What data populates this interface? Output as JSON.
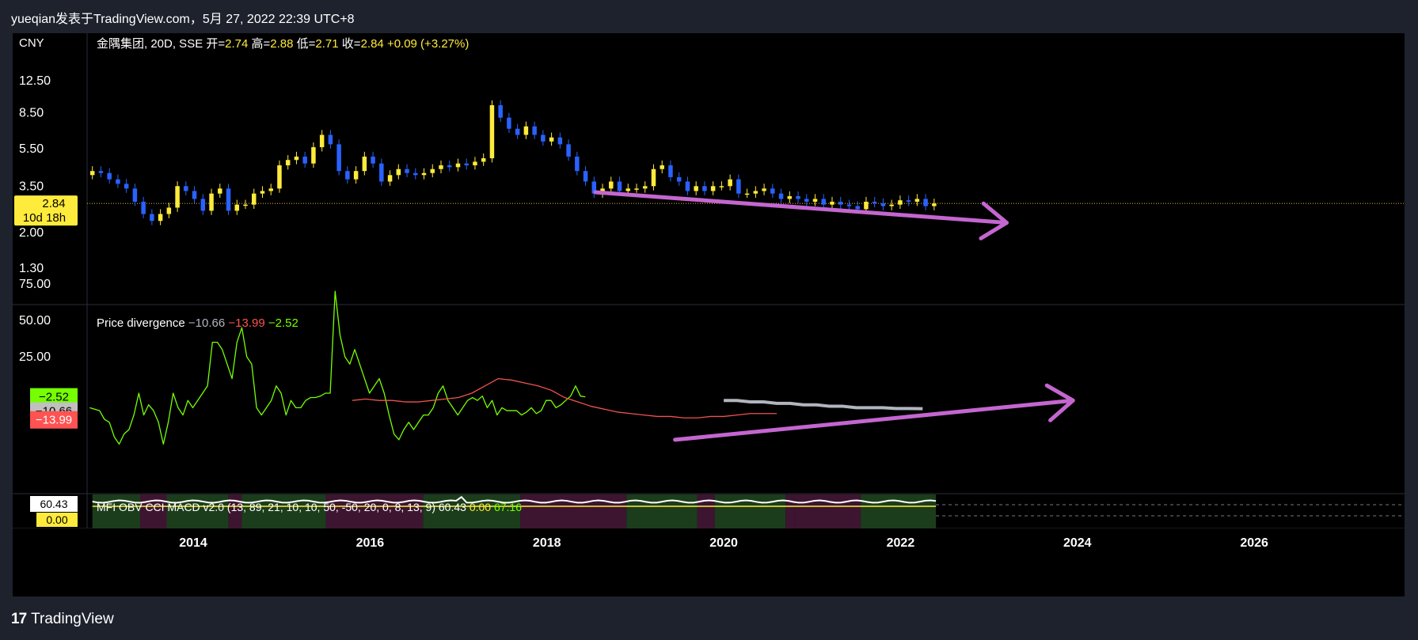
{
  "header": {
    "text": "yueqian发表于TradingView.com，5月 27, 2022 22:39 UTC+8"
  },
  "footer": {
    "brand": "TradingView",
    "logo_mark": "17"
  },
  "colors": {
    "up": "#ffeb3b",
    "down": "#2962ff",
    "accent_arrow": "#c466d0",
    "green": "#76ff03",
    "red": "#ff5252",
    "gray": "#b2b5be",
    "price_line": "#e8b84a"
  },
  "chart_data": [
    {
      "type": "candlestick",
      "pane": "price",
      "currency": "CNY",
      "legend": {
        "symbol": "金隅集团, 20D, SSE",
        "o_label": "开=",
        "o": "2.74",
        "h_label": "高=",
        "h": "2.88",
        "l_label": "低=",
        "l": "2.71",
        "c_label": "收=",
        "c": "2.84",
        "change": "+0.09 (+3.27%)"
      },
      "y_scale": "log",
      "y_ticks": [
        "12.50",
        "8.50",
        "5.50",
        "3.50",
        "2.00",
        "1.30"
      ],
      "y_tick_values": [
        12.5,
        8.5,
        5.5,
        3.5,
        2.0,
        1.3
      ],
      "price_tag": {
        "value": "2.84",
        "countdown": "10d 18h"
      },
      "x_ticks": [
        "2014",
        "2016",
        "2018",
        "2020",
        "2022",
        "2024",
        "2026"
      ],
      "x_tick_values": [
        2014,
        2016,
        2018,
        2020,
        2022,
        2024,
        2026
      ],
      "x_range": [
        2012.8,
        2027.7
      ],
      "closes": [
        4.2,
        4.1,
        3.8,
        3.6,
        3.4,
        2.9,
        2.5,
        2.3,
        2.5,
        2.7,
        3.5,
        3.3,
        3.0,
        2.6,
        3.2,
        3.4,
        2.6,
        2.8,
        2.8,
        3.2,
        3.3,
        3.4,
        4.5,
        4.8,
        5.0,
        4.6,
        5.6,
        6.5,
        5.8,
        4.2,
        3.8,
        4.2,
        5.0,
        4.6,
        3.7,
        4.0,
        4.3,
        4.1,
        4.0,
        4.1,
        4.3,
        4.5,
        4.4,
        4.6,
        4.5,
        4.7,
        4.9,
        9.3,
        8.0,
        7.0,
        6.5,
        7.2,
        6.5,
        6.0,
        6.3,
        5.8,
        5.0,
        4.2,
        3.7,
        3.2,
        3.4,
        3.7,
        3.3,
        3.4,
        3.4,
        3.5,
        4.3,
        4.5,
        3.9,
        3.7,
        3.3,
        3.5,
        3.3,
        3.5,
        3.5,
        3.8,
        3.2,
        3.2,
        3.3,
        3.4,
        3.2,
        3.0,
        3.1,
        3.0,
        2.9,
        3.0,
        2.8,
        2.9,
        2.8,
        2.75,
        2.65,
        2.9,
        2.85,
        2.75,
        2.8,
        2.95,
        2.9,
        3.0,
        2.75,
        2.84
      ],
      "annotation_arrow": {
        "from": [
          2018.55,
          3.25
        ],
        "to": [
          2023.2,
          2.25
        ]
      }
    },
    {
      "type": "line",
      "pane": "indicator",
      "title": "Price divergence",
      "values_label": [
        "−10.66",
        "−13.99",
        "−2.52"
      ],
      "y_ticks": [
        "75.00",
        "50.00",
        "25.00"
      ],
      "y_tick_values": [
        75,
        50,
        25
      ],
      "y_range": [
        -50,
        75
      ],
      "tags": [
        "−2.52",
        "−10.66",
        "−13.99"
      ],
      "tag_values": [
        -2.52,
        -10.66,
        -13.99
      ],
      "series": [
        {
          "color": "#76ff03",
          "x_start": 2012.83,
          "x_step": 0.0555,
          "values": [
            -10,
            -11,
            -12,
            -18,
            -20,
            -30,
            -35,
            -28,
            -25,
            -15,
            0,
            -15,
            -8,
            -12,
            -20,
            -35,
            -20,
            0,
            -10,
            -15,
            -5,
            -10,
            -5,
            0,
            5,
            35,
            35,
            30,
            20,
            10,
            35,
            45,
            25,
            20,
            -10,
            -15,
            -10,
            -5,
            5,
            0,
            -15,
            -5,
            -10,
            -10,
            -5,
            -3,
            -3,
            -2,
            0,
            0,
            70,
            40,
            25,
            20,
            30,
            20,
            10,
            0,
            5,
            10,
            0,
            -15,
            -28,
            -32,
            -25,
            -20,
            -25,
            -20,
            -15,
            -15,
            -10,
            0,
            5,
            -5,
            -10,
            -15,
            -10,
            -5,
            -3,
            -5,
            -2,
            -10,
            -5,
            -15,
            -10,
            -12,
            -12,
            -12,
            -15,
            -13,
            -10,
            -14,
            -12,
            -5,
            -5,
            -10,
            -8,
            -5,
            -2,
            5,
            -2,
            -2.52
          ]
        },
        {
          "color": "#ef5350",
          "x_start": 2015.8,
          "x_step": 0.15,
          "values": [
            -5,
            -4,
            -5,
            -5,
            -6,
            -6,
            -5,
            -4,
            -3,
            0,
            5,
            10,
            9,
            7,
            5,
            2,
            -3,
            -6,
            -9,
            -11,
            -13,
            -14,
            -15,
            -16,
            -16,
            -17,
            -17,
            -16,
            -16,
            -15,
            -14,
            -14,
            -13.99
          ]
        },
        {
          "color": "#b2b5be",
          "x_start": 2020.0,
          "x_step": 0.15,
          "values": [
            -5,
            -5,
            -6,
            -6,
            -7,
            -7,
            -8,
            -8,
            -9,
            -9,
            -10,
            -10,
            -10,
            -10.5,
            -10.5,
            -10.66
          ]
        }
      ],
      "annotation_arrow": {
        "from": [
          2019.45,
          -32
        ],
        "to": [
          2023.95,
          -5
        ]
      }
    },
    {
      "type": "area",
      "pane": "oscillator",
      "legend": "MFI OBV CCI MACD v2.0 (13, 89, 21, 10, 10, 50, -50, 20, 0, 8, 13, 9)",
      "legend_values": [
        "60.43",
        "0.00",
        "67.16"
      ],
      "tags": [
        "60.43",
        "0.00"
      ]
    }
  ]
}
